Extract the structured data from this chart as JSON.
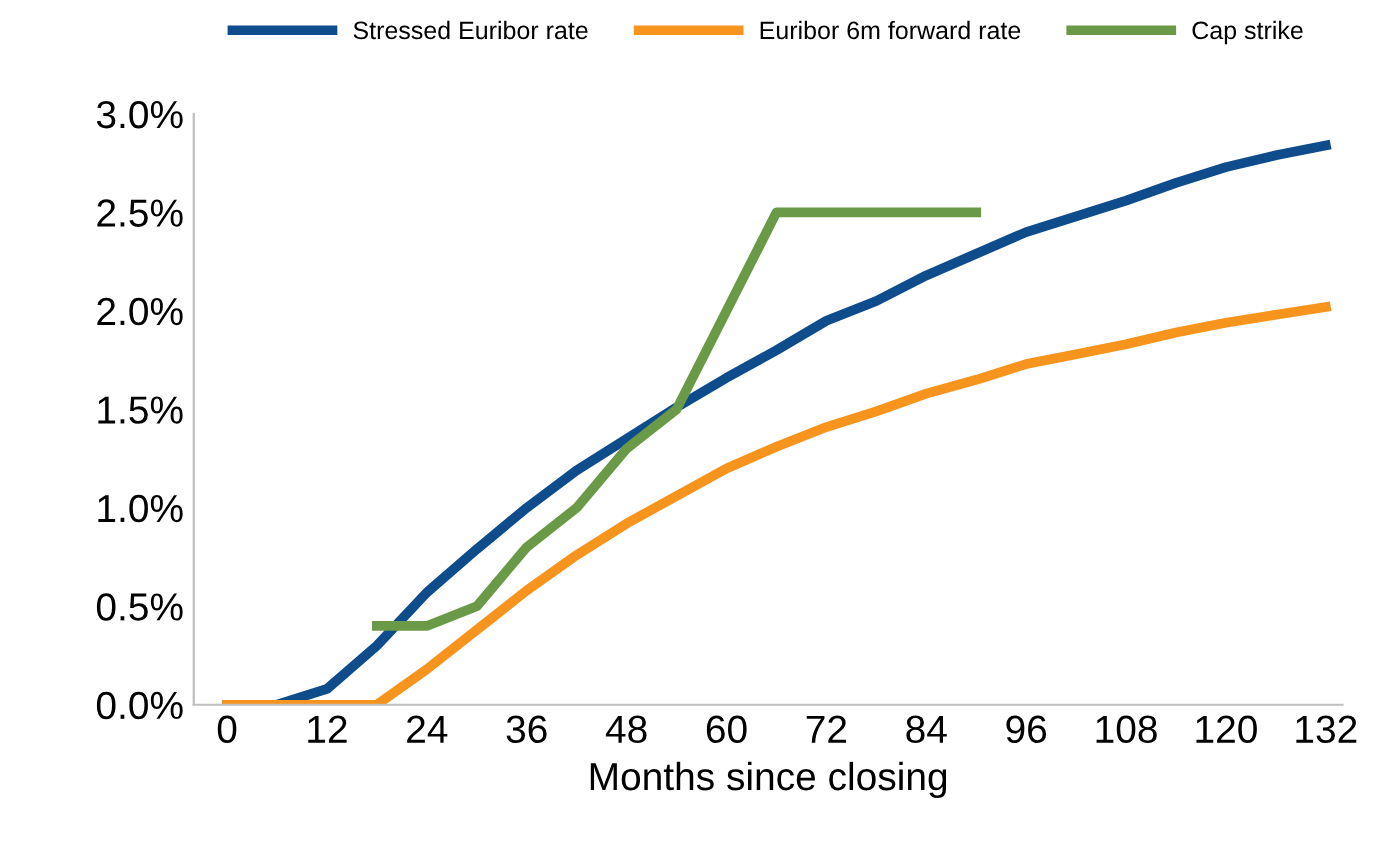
{
  "chart_data": {
    "type": "line",
    "xlabel": "Months since closing",
    "legend": "top",
    "grid": false,
    "marker": "none",
    "line_style": "solid",
    "xlim": [
      -4,
      134
    ],
    "xticks": [
      0,
      12,
      24,
      36,
      48,
      60,
      72,
      84,
      96,
      108,
      120,
      132
    ],
    "ylim": [
      0,
      3.0
    ],
    "yticks": [
      {
        "value": 0,
        "label": "0.0%"
      },
      {
        "value": 0.5,
        "label": "0.5%"
      },
      {
        "value": 1.0,
        "label": "1.0%"
      },
      {
        "value": 1.5,
        "label": "1.5%"
      },
      {
        "value": 2.0,
        "label": "2.0%"
      },
      {
        "value": 2.5,
        "label": "2.5%"
      },
      {
        "value": 3.0,
        "label": "3.0%"
      }
    ],
    "series": [
      {
        "name": "Stressed Euribor rate",
        "color": "#0e4c8c",
        "x": [
          0,
          6,
          12,
          18,
          24,
          30,
          36,
          42,
          48,
          54,
          60,
          66,
          72,
          78,
          84,
          90,
          96,
          102,
          108,
          114,
          120,
          126,
          132
        ],
        "values": [
          0,
          0,
          0.08,
          0.3,
          0.57,
          0.79,
          1.0,
          1.19,
          1.35,
          1.51,
          1.66,
          1.8,
          1.95,
          2.05,
          2.18,
          2.29,
          2.4,
          2.48,
          2.56,
          2.65,
          2.73,
          2.79,
          2.84
        ]
      },
      {
        "name": "Euribor 6m forward rate",
        "color": "#f7941d",
        "x": [
          0,
          6,
          12,
          18,
          24,
          30,
          36,
          42,
          48,
          54,
          60,
          66,
          72,
          78,
          84,
          90,
          96,
          102,
          108,
          114,
          120,
          126,
          132
        ],
        "values": [
          0,
          0,
          0,
          0,
          0.18,
          0.38,
          0.58,
          0.76,
          0.92,
          1.06,
          1.2,
          1.31,
          1.41,
          1.49,
          1.58,
          1.65,
          1.73,
          1.78,
          1.83,
          1.89,
          1.94,
          1.98,
          2.02
        ]
      },
      {
        "name": "Cap strike",
        "color": "#6a9a47",
        "x": [
          18,
          24,
          30,
          36,
          42,
          48,
          54,
          60,
          66,
          72,
          78,
          84,
          90
        ],
        "values": [
          0.4,
          0.4,
          0.5,
          0.8,
          1.0,
          1.3,
          1.5,
          2.0,
          2.5,
          2.5,
          2.5,
          2.5,
          2.5
        ]
      }
    ]
  }
}
